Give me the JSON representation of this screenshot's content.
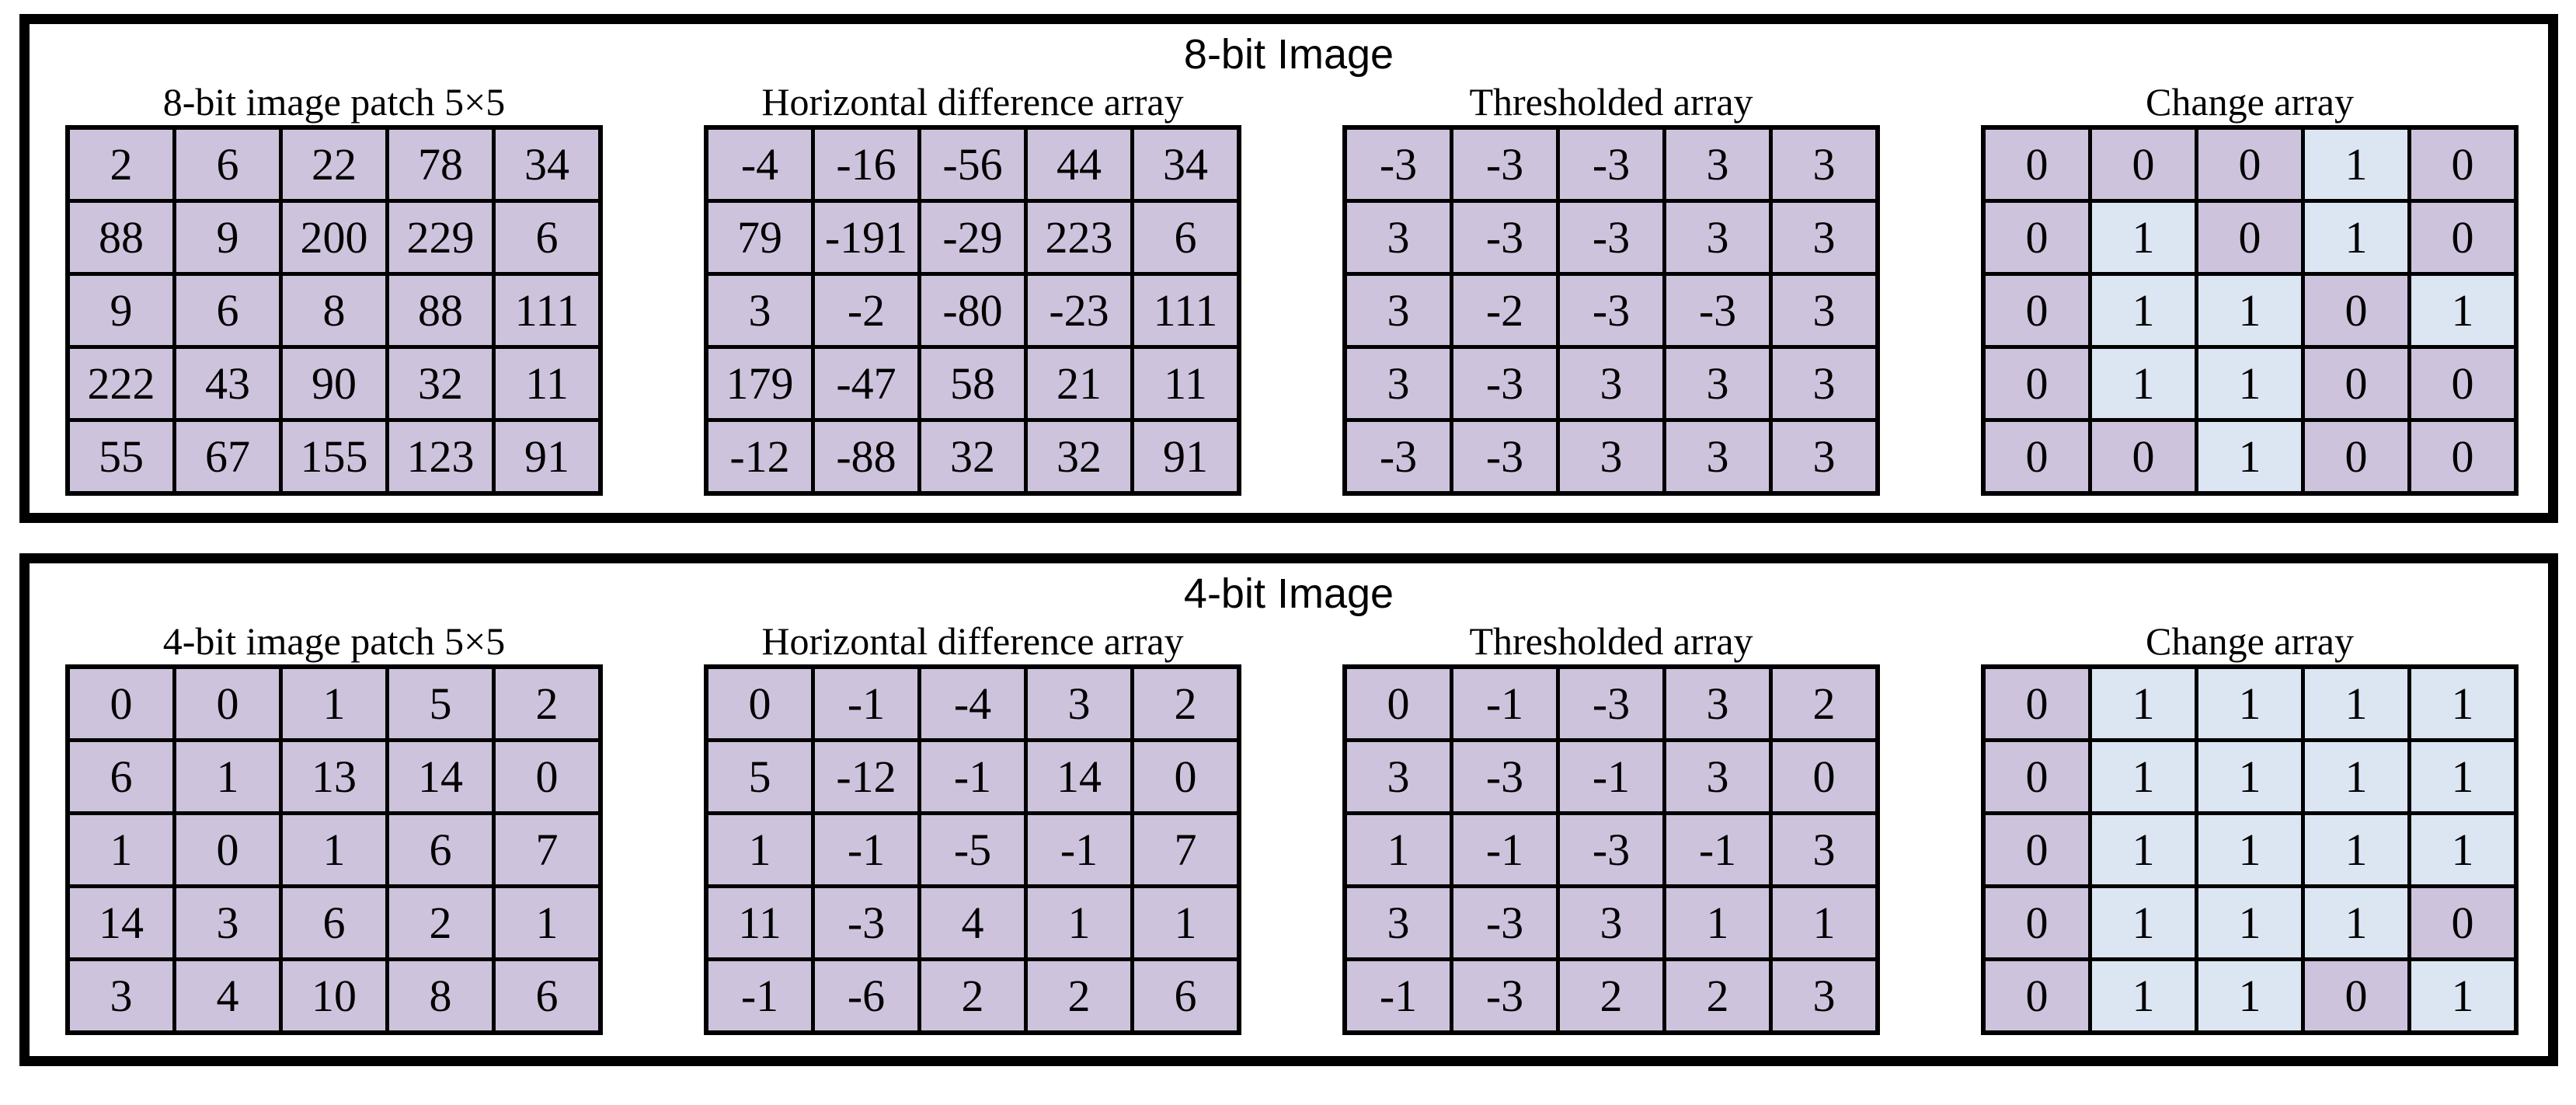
{
  "colors": {
    "cell_purple": "#cec3dc",
    "cell_highlight": "#dce6f2",
    "grid_border": "#000000",
    "panel_border": "#000000",
    "background": "#ffffff"
  },
  "panels": [
    {
      "title": "8-bit Image",
      "tables": [
        {
          "id": "8bit-image-patch",
          "title": "8-bit image patch 5×5",
          "rows": [
            [
              "2",
              "6",
              "22",
              "78",
              "34"
            ],
            [
              "88",
              "9",
              "200",
              "229",
              "6"
            ],
            [
              "9",
              "6",
              "8",
              "88",
              "111"
            ],
            [
              "222",
              "43",
              "90",
              "32",
              "11"
            ],
            [
              "55",
              "67",
              "155",
              "123",
              "91"
            ]
          ]
        },
        {
          "id": "8bit-horizontal-difference",
          "title": "Horizontal difference array",
          "rows": [
            [
              "-4",
              "-16",
              "-56",
              "44",
              "34"
            ],
            [
              "79",
              "-191",
              "-29",
              "223",
              "6"
            ],
            [
              "3",
              "-2",
              "-80",
              "-23",
              "111"
            ],
            [
              "179",
              "-47",
              "58",
              "21",
              "11"
            ],
            [
              "-12",
              "-88",
              "32",
              "32",
              "91"
            ]
          ]
        },
        {
          "id": "8bit-thresholded",
          "title": "Thresholded array",
          "rows": [
            [
              "-3",
              "-3",
              "-3",
              "3",
              "3"
            ],
            [
              "3",
              "-3",
              "-3",
              "3",
              "3"
            ],
            [
              "3",
              "-2",
              "-3",
              "-3",
              "3"
            ],
            [
              "3",
              "-3",
              "3",
              "3",
              "3"
            ],
            [
              "-3",
              "-3",
              "3",
              "3",
              "3"
            ]
          ]
        },
        {
          "id": "8bit-change",
          "title": "Change array",
          "highlight_value": "1",
          "rows": [
            [
              "0",
              "0",
              "0",
              "1",
              "0"
            ],
            [
              "0",
              "1",
              "0",
              "1",
              "0"
            ],
            [
              "0",
              "1",
              "1",
              "0",
              "1"
            ],
            [
              "0",
              "1",
              "1",
              "0",
              "0"
            ],
            [
              "0",
              "0",
              "1",
              "0",
              "0"
            ]
          ]
        }
      ]
    },
    {
      "title": "4-bit Image",
      "tables": [
        {
          "id": "4bit-image-patch",
          "title": "4-bit image patch 5×5",
          "rows": [
            [
              "0",
              "0",
              "1",
              "5",
              "2"
            ],
            [
              "6",
              "1",
              "13",
              "14",
              "0"
            ],
            [
              "1",
              "0",
              "1",
              "6",
              "7"
            ],
            [
              "14",
              "3",
              "6",
              "2",
              "1"
            ],
            [
              "3",
              "4",
              "10",
              "8",
              "6"
            ]
          ]
        },
        {
          "id": "4bit-horizontal-difference",
          "title": "Horizontal difference array",
          "rows": [
            [
              "0",
              "-1",
              "-4",
              "3",
              "2"
            ],
            [
              "5",
              "-12",
              "-1",
              "14",
              "0"
            ],
            [
              "1",
              "-1",
              "-5",
              "-1",
              "7"
            ],
            [
              "11",
              "-3",
              "4",
              "1",
              "1"
            ],
            [
              "-1",
              "-6",
              "2",
              "2",
              "6"
            ]
          ]
        },
        {
          "id": "4bit-thresholded",
          "title": "Thresholded array",
          "rows": [
            [
              "0",
              "-1",
              "-3",
              "3",
              "2"
            ],
            [
              "3",
              "-3",
              "-1",
              "3",
              "0"
            ],
            [
              "1",
              "-1",
              "-3",
              "-1",
              "3"
            ],
            [
              "3",
              "-3",
              "3",
              "1",
              "1"
            ],
            [
              "-1",
              "-3",
              "2",
              "2",
              "3"
            ]
          ]
        },
        {
          "id": "4bit-change",
          "title": "Change array",
          "highlight_value": "1",
          "rows": [
            [
              "0",
              "1",
              "1",
              "1",
              "1"
            ],
            [
              "0",
              "1",
              "1",
              "1",
              "1"
            ],
            [
              "0",
              "1",
              "1",
              "1",
              "1"
            ],
            [
              "0",
              "1",
              "1",
              "1",
              "0"
            ],
            [
              "0",
              "1",
              "1",
              "0",
              "1"
            ]
          ]
        }
      ]
    }
  ]
}
